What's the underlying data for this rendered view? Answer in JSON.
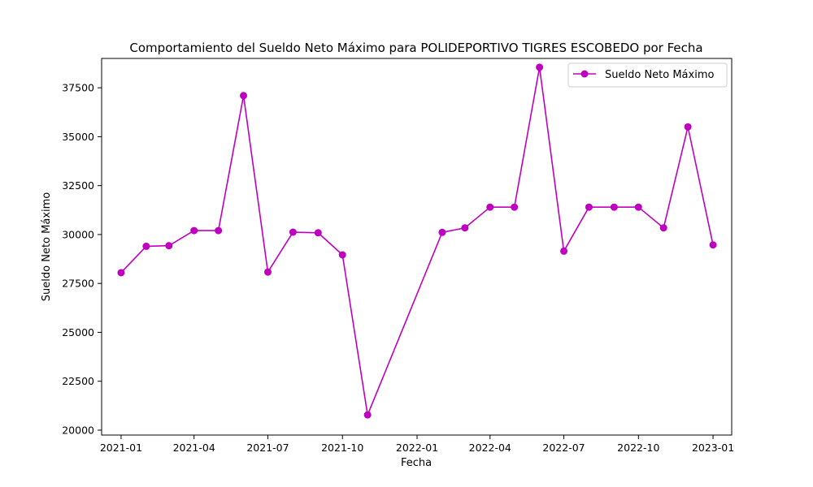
{
  "chart_data": {
    "type": "line",
    "title": "Comportamiento del Sueldo Neto Máximo para POLIDEPORTIVO TIGRES ESCOBEDO por Fecha",
    "xlabel": "Fecha",
    "ylabel": "Sueldo Neto Máximo",
    "x_ticks": [
      "2021-01",
      "2021-04",
      "2021-07",
      "2021-10",
      "2022-01",
      "2022-04",
      "2022-07",
      "2022-10",
      "2023-01"
    ],
    "y_ticks": [
      20000,
      22500,
      25000,
      27500,
      30000,
      32500,
      35000,
      37500
    ],
    "ylim": [
      19750,
      39000
    ],
    "xlim": [
      "2020-12-08",
      "2023-01-24"
    ],
    "grid": false,
    "legend_position": "top-right",
    "series": [
      {
        "name": "Sueldo Neto Máximo",
        "color": "#bf00bf",
        "marker": "circle",
        "points": [
          {
            "x": "2021-01",
            "y": 28050
          },
          {
            "x": "2021-02",
            "y": 29400
          },
          {
            "x": "2021-03",
            "y": 29430
          },
          {
            "x": "2021-04",
            "y": 30200
          },
          {
            "x": "2021-05",
            "y": 30200
          },
          {
            "x": "2021-06",
            "y": 37100
          },
          {
            "x": "2021-07",
            "y": 28080
          },
          {
            "x": "2021-08",
            "y": 30120
          },
          {
            "x": "2021-09",
            "y": 30090
          },
          {
            "x": "2021-10",
            "y": 28960
          },
          {
            "x": "2021-11",
            "y": 20780
          },
          {
            "x": "2022-02",
            "y": 30110
          },
          {
            "x": "2022-03",
            "y": 30340
          },
          {
            "x": "2022-04",
            "y": 31400
          },
          {
            "x": "2022-05",
            "y": 31400
          },
          {
            "x": "2022-06",
            "y": 38550
          },
          {
            "x": "2022-07",
            "y": 29150
          },
          {
            "x": "2022-08",
            "y": 31400
          },
          {
            "x": "2022-09",
            "y": 31400
          },
          {
            "x": "2022-10",
            "y": 31400
          },
          {
            "x": "2022-11",
            "y": 30340
          },
          {
            "x": "2022-12",
            "y": 35500
          },
          {
            "x": "2023-01",
            "y": 29470
          }
        ]
      }
    ]
  }
}
